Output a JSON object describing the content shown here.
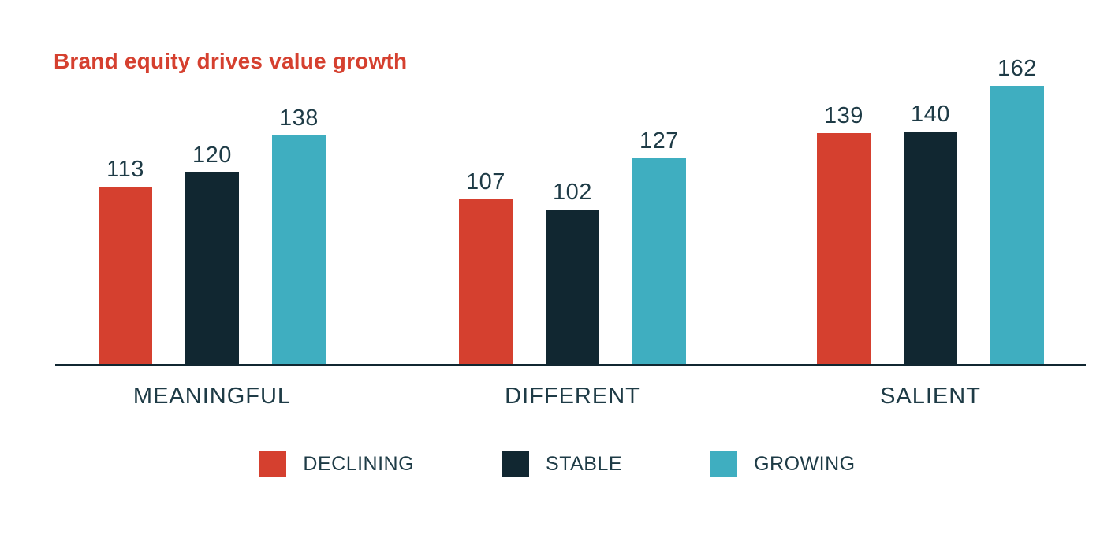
{
  "title": "Brand equity drives value growth",
  "colors": {
    "title": "#D5402F",
    "text": "#1E3B46",
    "axis": "#112731",
    "background": "#ffffff"
  },
  "chart_data": {
    "type": "bar",
    "title": "Brand equity drives value growth",
    "categories": [
      "MEANINGFUL",
      "DIFFERENT",
      "SALIENT"
    ],
    "series": [
      {
        "name": "DECLINING",
        "color": "#D5402F",
        "values": [
          113,
          107,
          139
        ]
      },
      {
        "name": "STABLE",
        "color": "#112731",
        "values": [
          120,
          102,
          140
        ]
      },
      {
        "name": "GROWING",
        "color": "#3FAEC0",
        "values": [
          138,
          127,
          162
        ]
      }
    ],
    "xlabel": "",
    "ylabel": "",
    "value_labels": "above bars",
    "legend_position": "bottom",
    "grid": false,
    "y_axis_shown": false,
    "x_baseline_shown": true
  }
}
